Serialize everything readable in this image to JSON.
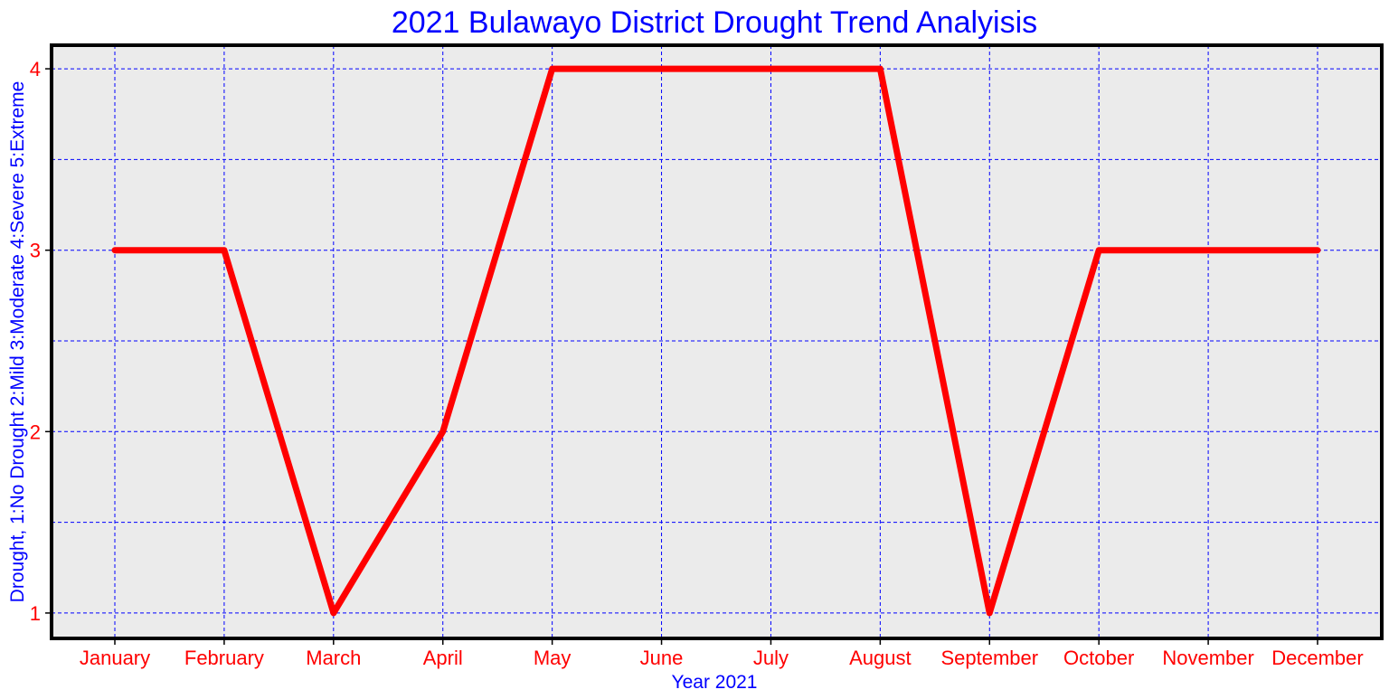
{
  "chart_data": {
    "type": "line",
    "title": "2021 Bulawayo District Drought Trend Analyisis",
    "xlabel": "Year 2021",
    "ylabel": "Drought, 1:No Drought 2:Mild 3:Moderate 4:Severe 5:Extreme",
    "categories": [
      "January",
      "February",
      "March",
      "April",
      "May",
      "June",
      "July",
      "August",
      "September",
      "October",
      "November",
      "December"
    ],
    "series": [
      {
        "values": [
          3,
          3,
          1,
          2,
          4,
          4,
          4,
          4,
          1,
          3,
          3,
          3
        ]
      }
    ],
    "yticks": [
      1,
      2,
      3,
      4
    ],
    "ylim": [
      0.86,
      4.13
    ],
    "grid": true,
    "colors": {
      "title": "#0000ff",
      "axis_label": "#0000ff",
      "tick_label": "#ff0000",
      "line": "#ff0000",
      "grid": "#0000ff",
      "plot_background": "#ebebeb",
      "frame": "#000000"
    }
  }
}
